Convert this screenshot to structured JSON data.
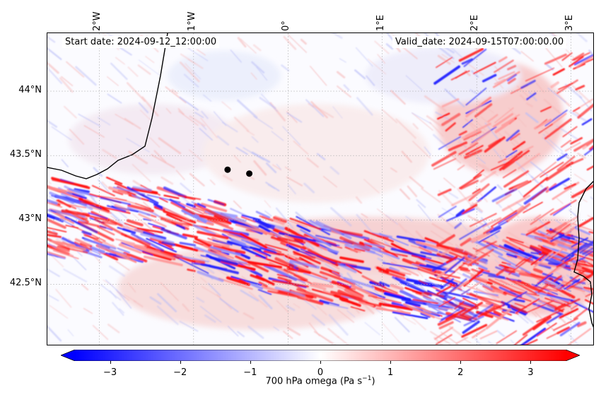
{
  "header": {
    "start_date": "Start date: 2024-09-12_12:00:00",
    "valid_date": "Valid_date: 2024-09-15T07:00:00.00"
  },
  "map": {
    "extent": {
      "lon_min": -2.55,
      "lon_max": 3.25,
      "lat_min": 42.02,
      "lat_max": 44.45
    },
    "lat_ticks": [
      {
        "value": 44.0,
        "label": "44°N"
      },
      {
        "value": 43.5,
        "label": "43.5°N"
      },
      {
        "value": 43.0,
        "label": "43°N"
      },
      {
        "value": 42.5,
        "label": "42.5°N"
      }
    ],
    "lon_ticks": [
      {
        "value": -2,
        "label": "2°W"
      },
      {
        "value": -1,
        "label": "1°W"
      },
      {
        "value": 0,
        "label": "0°"
      },
      {
        "value": 1,
        "label": "1°E"
      },
      {
        "value": 2,
        "label": "2°E"
      },
      {
        "value": 3,
        "label": "3°E"
      }
    ],
    "gridlines": true,
    "points": [
      {
        "lon": -0.64,
        "lat": 43.39
      },
      {
        "lon": -0.41,
        "lat": 43.36
      }
    ]
  },
  "colorbar": {
    "label_main": "700 hPa omega (Pa s",
    "label_sup": "−1",
    "label_end": ")",
    "vmin": -3.5,
    "vmax": 3.5,
    "extend": "both",
    "cmap": "bwr",
    "ticks": [
      {
        "value": -3,
        "label": "−3"
      },
      {
        "value": -2,
        "label": "−2"
      },
      {
        "value": -1,
        "label": "−1"
      },
      {
        "value": 0,
        "label": "0"
      },
      {
        "value": 1,
        "label": "1"
      },
      {
        "value": 2,
        "label": "2"
      },
      {
        "value": 3,
        "label": "3"
      }
    ],
    "colors": {
      "low": "#0000ff",
      "mid": "#ffffff",
      "high": "#ff0000"
    }
  }
}
